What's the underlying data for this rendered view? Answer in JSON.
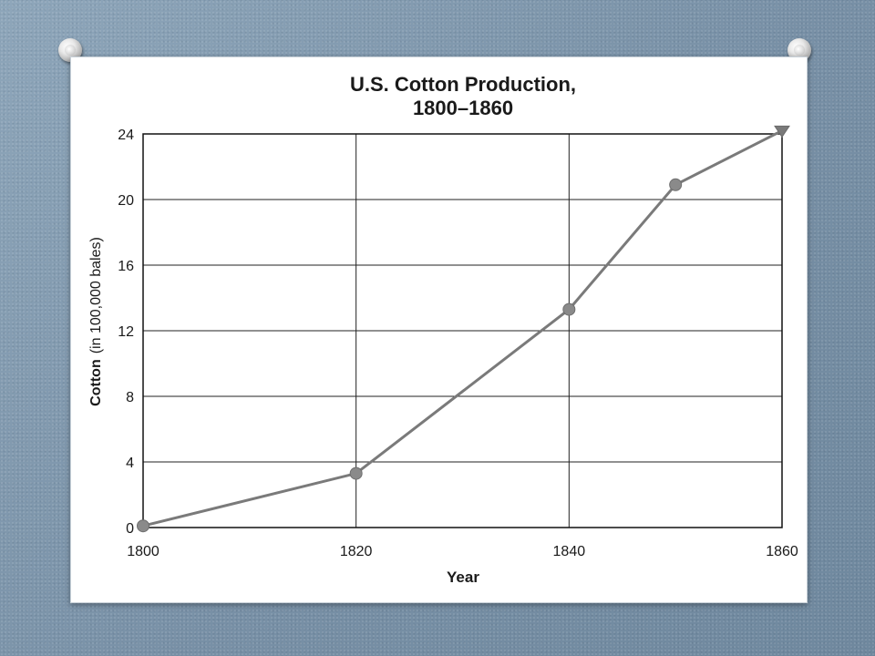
{
  "chart_data": {
    "type": "line",
    "title_lines": [
      "U.S. Cotton Production,",
      "1800–1860"
    ],
    "xlabel": "Year",
    "ylabel_bold": "Cotton",
    "ylabel_rest": "(in 100,000 bales)",
    "xlim": [
      1800,
      1860
    ],
    "ylim": [
      0,
      24
    ],
    "x_ticks": [
      1800,
      1820,
      1840,
      1860
    ],
    "y_ticks": [
      0,
      4,
      8,
      12,
      16,
      20,
      24
    ],
    "x_gridlines": [
      1820,
      1840
    ],
    "y_gridlines": [
      4,
      8,
      12,
      16,
      20
    ],
    "grid": true,
    "series": [
      {
        "x": [
          1800,
          1820,
          1840,
          1850,
          1860
        ],
        "y": [
          0.1,
          3.3,
          13.3,
          20.9,
          24.2
        ],
        "last_point_marker": "triangle",
        "color": "#7a7a7a"
      }
    ]
  }
}
